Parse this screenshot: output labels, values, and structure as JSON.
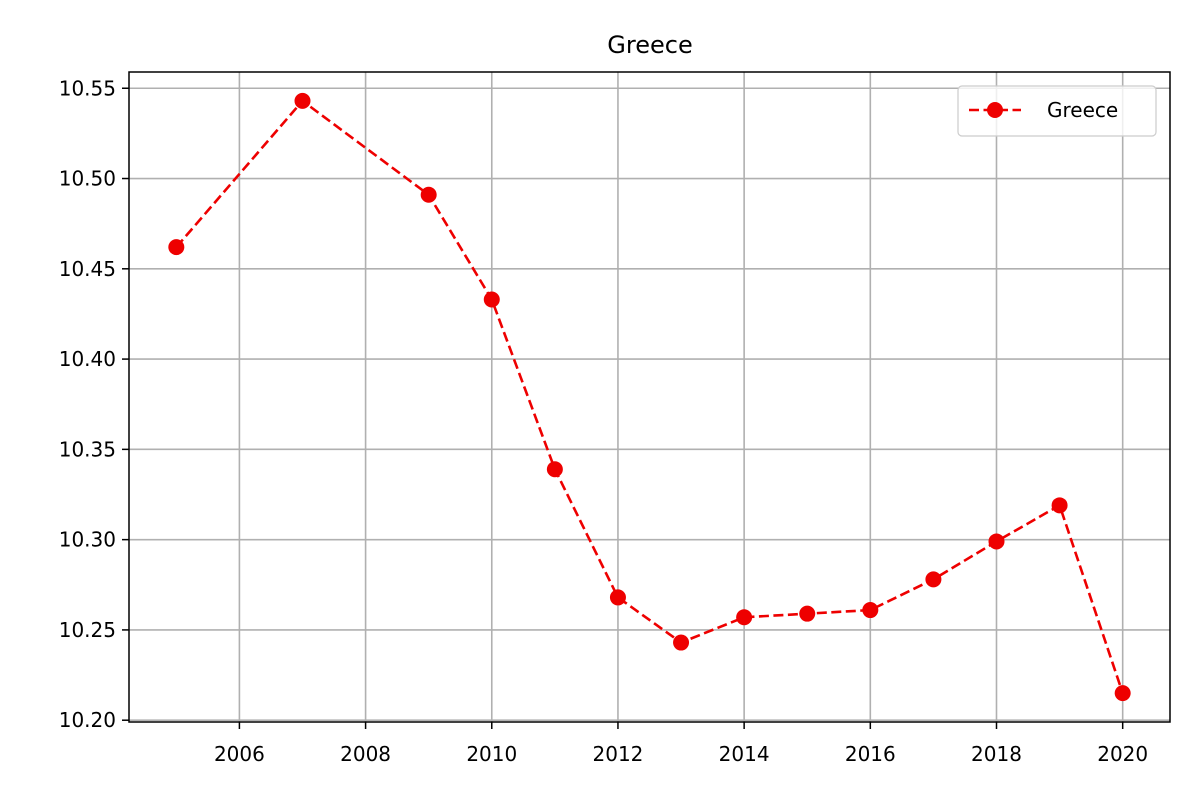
{
  "chart_data": {
    "type": "line",
    "title": "Greece",
    "xlabel": "",
    "ylabel": "",
    "grid": true,
    "legend_position": "top-right",
    "xlim": [
      2004.25,
      2020.75
    ],
    "ylim": [
      10.199,
      10.559
    ],
    "x_ticks": [
      2006,
      2008,
      2010,
      2012,
      2014,
      2016,
      2018,
      2020
    ],
    "x_tick_labels": [
      "2006",
      "2008",
      "2010",
      "2012",
      "2014",
      "2016",
      "2018",
      "2020"
    ],
    "y_ticks": [
      10.2,
      10.25,
      10.3,
      10.35,
      10.4,
      10.45,
      10.5,
      10.55
    ],
    "y_tick_labels": [
      "10.20",
      "10.25",
      "10.30",
      "10.35",
      "10.40",
      "10.45",
      "10.50",
      "10.55"
    ],
    "series": [
      {
        "name": "Greece",
        "color": "#ee0000",
        "line_style": "dashed",
        "marker": "circle",
        "x": [
          2005,
          2007,
          2009,
          2010,
          2011,
          2012,
          2013,
          2014,
          2015,
          2016,
          2017,
          2018,
          2019,
          2020
        ],
        "y": [
          10.462,
          10.543,
          10.491,
          10.433,
          10.339,
          10.268,
          10.243,
          10.257,
          10.259,
          10.261,
          10.278,
          10.299,
          10.319,
          10.215
        ]
      }
    ]
  }
}
